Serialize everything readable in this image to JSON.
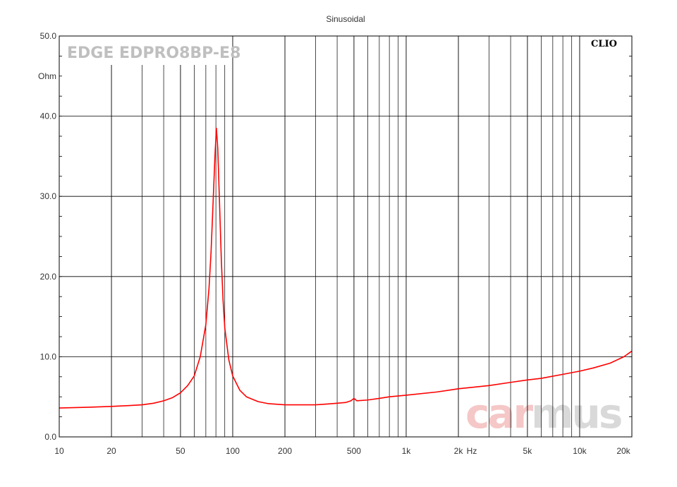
{
  "chart_data": {
    "type": "line",
    "title": "Sinusoidal",
    "model_label": "EDGE EDPRO8BP-E8",
    "brand_label": "CLIO",
    "watermark": {
      "part1": "car",
      "part2": "mus"
    },
    "xscale": "log",
    "xlim": [
      10,
      20000
    ],
    "ylim": [
      0,
      50
    ],
    "yunit": "Ohm",
    "xunit": "Hz",
    "grid": true,
    "x_ticks": [
      {
        "value": 10,
        "label": "10"
      },
      {
        "value": 20,
        "label": "20"
      },
      {
        "value": 50,
        "label": "50"
      },
      {
        "value": 100,
        "label": "100"
      },
      {
        "value": 200,
        "label": "200"
      },
      {
        "value": 500,
        "label": "500"
      },
      {
        "value": 1000,
        "label": "1k"
      },
      {
        "value": 2000,
        "label": "2k"
      },
      {
        "value": 5000,
        "label": "5k"
      },
      {
        "value": 10000,
        "label": "10k"
      },
      {
        "value": 20000,
        "label": "20k"
      }
    ],
    "y_ticks": [
      {
        "value": 0,
        "label": "0.0"
      },
      {
        "value": 10,
        "label": "10.0"
      },
      {
        "value": 20,
        "label": "20.0"
      },
      {
        "value": 30,
        "label": "30.0"
      },
      {
        "value": 40,
        "label": "40.0"
      },
      {
        "value": 50,
        "label": "50.0"
      }
    ],
    "series": [
      {
        "color": "#ff0000",
        "points": [
          [
            10,
            3.6
          ],
          [
            15,
            3.7
          ],
          [
            20,
            3.8
          ],
          [
            25,
            3.9
          ],
          [
            30,
            4.0
          ],
          [
            35,
            4.2
          ],
          [
            40,
            4.5
          ],
          [
            45,
            4.9
          ],
          [
            50,
            5.5
          ],
          [
            55,
            6.4
          ],
          [
            60,
            7.6
          ],
          [
            65,
            10.0
          ],
          [
            70,
            14.0
          ],
          [
            73,
            18.5
          ],
          [
            75,
            23.0
          ],
          [
            77,
            29.0
          ],
          [
            79,
            35.0
          ],
          [
            80.5,
            38.5
          ],
          [
            82,
            36.0
          ],
          [
            84,
            29.0
          ],
          [
            86,
            22.0
          ],
          [
            88,
            17.0
          ],
          [
            90,
            13.6
          ],
          [
            95,
            9.6
          ],
          [
            100,
            7.6
          ],
          [
            110,
            5.8
          ],
          [
            120,
            5.0
          ],
          [
            140,
            4.4
          ],
          [
            160,
            4.15
          ],
          [
            200,
            4.0
          ],
          [
            250,
            4.0
          ],
          [
            300,
            4.0
          ],
          [
            350,
            4.1
          ],
          [
            400,
            4.2
          ],
          [
            450,
            4.3
          ],
          [
            480,
            4.5
          ],
          [
            500,
            4.8
          ],
          [
            520,
            4.5
          ],
          [
            600,
            4.6
          ],
          [
            700,
            4.8
          ],
          [
            800,
            5.0
          ],
          [
            1000,
            5.2
          ],
          [
            1500,
            5.6
          ],
          [
            2000,
            6.0
          ],
          [
            3000,
            6.4
          ],
          [
            4000,
            6.8
          ],
          [
            5000,
            7.1
          ],
          [
            6000,
            7.3
          ],
          [
            8000,
            7.8
          ],
          [
            10000,
            8.2
          ],
          [
            12000,
            8.6
          ],
          [
            15000,
            9.2
          ],
          [
            18000,
            10.0
          ],
          [
            20000,
            10.7
          ]
        ]
      }
    ]
  }
}
